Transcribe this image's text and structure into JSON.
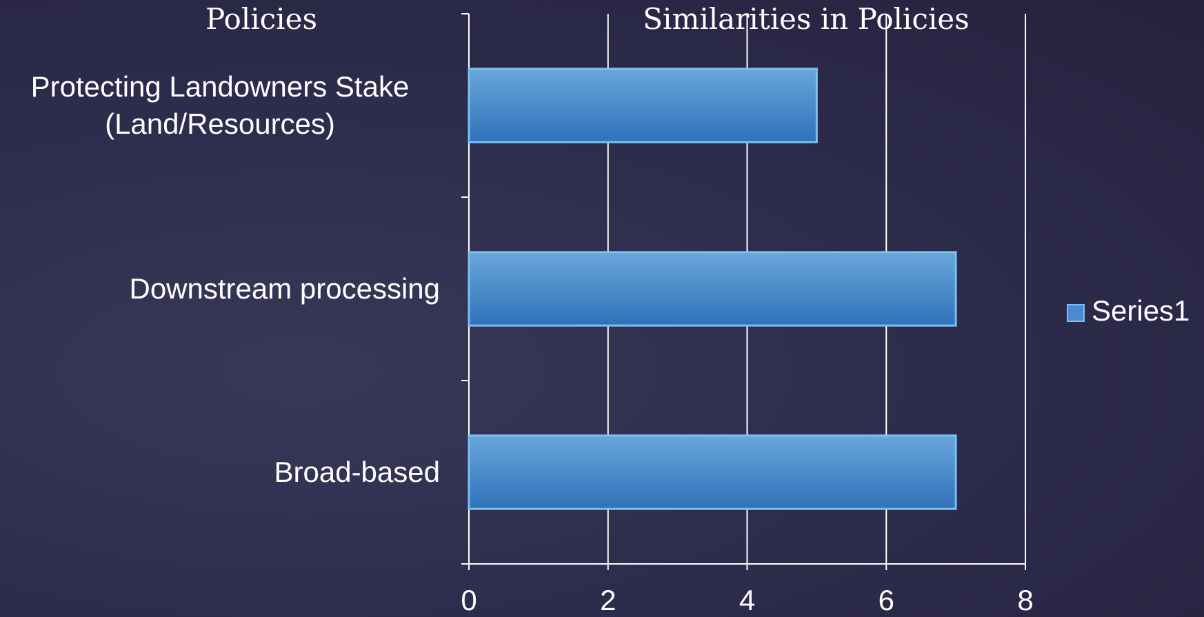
{
  "chart_data": {
    "type": "bar",
    "orientation": "horizontal",
    "title": "Similarities in Policies",
    "y_axis_title": "Policies",
    "categories": [
      "Protecting Landowners Stake (Land/Resources)",
      "Downstream processing",
      "Broad-based"
    ],
    "series": [
      {
        "name": "Series1",
        "color": "#4a8ad0",
        "values": [
          5,
          7,
          7
        ]
      }
    ],
    "xlim": [
      0,
      8
    ],
    "xticks": [
      0,
      2,
      4,
      6,
      8
    ],
    "grid": true,
    "legend": "right"
  }
}
